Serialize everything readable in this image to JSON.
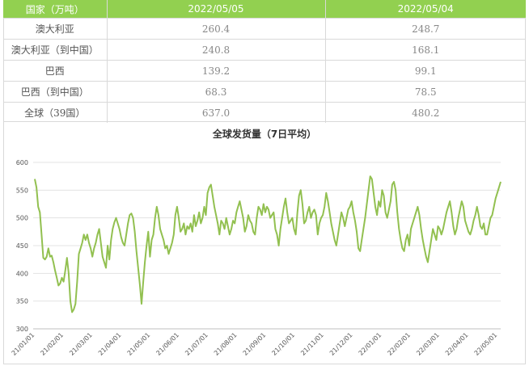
{
  "table": {
    "headers": [
      "国家（万吨）",
      "2022/05/05",
      "2022/05/04"
    ],
    "rows": [
      {
        "label": "澳大利亚",
        "v1": "260.4",
        "v2": "248.7"
      },
      {
        "label": "澳大利亚（到中国）",
        "v1": "240.8",
        "v2": "168.1"
      },
      {
        "label": "巴西",
        "v1": "139.2",
        "v2": "99.1"
      },
      {
        "label": "巴西（到中国）",
        "v1": "68.3",
        "v2": "78.5"
      },
      {
        "label": "全球（39国）",
        "v1": "637.0",
        "v2": "480.2"
      }
    ]
  },
  "chart_data": {
    "type": "line",
    "title": "全球发货量（7日平均）",
    "xlabel": "",
    "ylabel": "",
    "ylim": [
      300,
      600
    ],
    "yticks": [
      300,
      350,
      400,
      450,
      500,
      550,
      600
    ],
    "xticks": [
      "21/01/01",
      "21/02/01",
      "21/03/01",
      "21/04/01",
      "21/05/01",
      "21/06/01",
      "21/07/01",
      "21/08/01",
      "21/09/01",
      "21/10/01",
      "21/11/01",
      "21/12/01",
      "22/01/01",
      "22/02/01",
      "22/03/01",
      "22/04/01",
      "22/05/01"
    ],
    "grid": true,
    "line_color": "#92c050",
    "series": [
      {
        "values": [
          570,
          555,
          520,
          510,
          470,
          428,
          425,
          430,
          445,
          430,
          432,
          420,
          405,
          392,
          378,
          382,
          392,
          385,
          405,
          428,
          400,
          350,
          330,
          335,
          345,
          385,
          435,
          445,
          455,
          470,
          460,
          470,
          455,
          445,
          430,
          445,
          455,
          470,
          480,
          455,
          430,
          420,
          410,
          450,
          425,
          460,
          480,
          492,
          500,
          490,
          480,
          465,
          455,
          450,
          470,
          490,
          505,
          508,
          500,
          475,
          440,
          410,
          380,
          345,
          385,
          420,
          450,
          475,
          430,
          460,
          470,
          500,
          520,
          505,
          480,
          470,
          460,
          445,
          450,
          435,
          445,
          455,
          470,
          505,
          520,
          500,
          475,
          480,
          490,
          470,
          485,
          480,
          490,
          475,
          505,
          485,
          495,
          510,
          490,
          500,
          520,
          505,
          545,
          555,
          560,
          540,
          520,
          505,
          490,
          470,
          495,
          490,
          480,
          500,
          485,
          470,
          480,
          495,
          490,
          510,
          520,
          530,
          515,
          500,
          475,
          485,
          505,
          495,
          490,
          475,
          470,
          500,
          520,
          515,
          505,
          525,
          510,
          520,
          515,
          500,
          505,
          510,
          480,
          470,
          450,
          480,
          500,
          520,
          535,
          510,
          490,
          495,
          500,
          480,
          470,
          510,
          540,
          550,
          525,
          490,
          495,
          510,
          520,
          500,
          510,
          515,
          505,
          470,
          490,
          500,
          505,
          520,
          545,
          530,
          510,
          490,
          475,
          460,
          450,
          470,
          490,
          510,
          500,
          485,
          500,
          515,
          520,
          530,
          510,
          495,
          475,
          445,
          440,
          460,
          480,
          500,
          525,
          550,
          575,
          570,
          545,
          520,
          505,
          530,
          520,
          550,
          540,
          510,
          500,
          515,
          530,
          560,
          565,
          550,
          510,
          480,
          460,
          445,
          440,
          460,
          470,
          450,
          480,
          490,
          500,
          510,
          520,
          505,
          480,
          460,
          445,
          430,
          420,
          440,
          460,
          480,
          470,
          460,
          485,
          480,
          470,
          480,
          495,
          510,
          520,
          530,
          510,
          485,
          470,
          480,
          500,
          515,
          530,
          520,
          495,
          485,
          475,
          470,
          480,
          495,
          505,
          520,
          505,
          485,
          480,
          490,
          470,
          470,
          485,
          500,
          505,
          520,
          535,
          545,
          555,
          565
        ]
      }
    ]
  }
}
